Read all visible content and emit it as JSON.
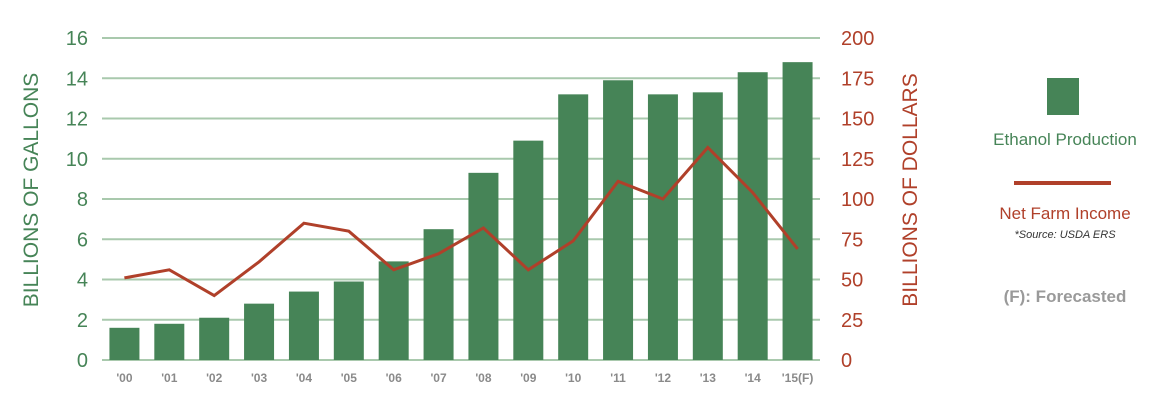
{
  "chart_data": {
    "type": "bar+line",
    "categories": [
      "'00",
      "'01",
      "'02",
      "'03",
      "'04",
      "'05",
      "'06",
      "'07",
      "'08",
      "'09",
      "'10",
      "'11",
      "'12",
      "'13",
      "'14",
      "'15(F)"
    ],
    "series": [
      {
        "name": "Ethanol Production",
        "type": "bar",
        "axis": "left",
        "values": [
          1.6,
          1.8,
          2.1,
          2.8,
          3.4,
          3.9,
          4.9,
          6.5,
          9.3,
          10.9,
          13.2,
          13.9,
          13.2,
          13.3,
          14.3,
          14.8
        ]
      },
      {
        "name": "Net Farm Income",
        "type": "line",
        "axis": "right",
        "values": [
          51,
          56,
          40,
          61,
          85,
          80,
          56,
          66,
          82,
          56,
          74,
          111,
          100,
          132,
          104,
          69
        ]
      }
    ],
    "left_axis": {
      "label": "BILLIONS OF GALLONS",
      "range": [
        0,
        16
      ],
      "ticks": [
        "0",
        "2",
        "4",
        "6",
        "8",
        "10",
        "12",
        "14",
        "16"
      ]
    },
    "right_axis": {
      "label": "BILLIONS OF DOLLARS",
      "range": [
        0,
        200
      ],
      "ticks": [
        "0",
        "25",
        "50",
        "75",
        "100",
        "125",
        "150",
        "175",
        "200"
      ]
    },
    "grid": true,
    "legend_position": "right"
  },
  "legend": {
    "bar_label": "Ethanol Production",
    "line_label": "Net Farm Income",
    "source": "*Source: USDA ERS",
    "note": "(F): Forecasted"
  },
  "colors": {
    "bar": "#468457",
    "line": "#b0402a",
    "grid": "#a9c9ad",
    "left_axis_text": "#468457",
    "right_axis_text": "#b0402a",
    "x_tick_text": "#8a8a8a"
  }
}
